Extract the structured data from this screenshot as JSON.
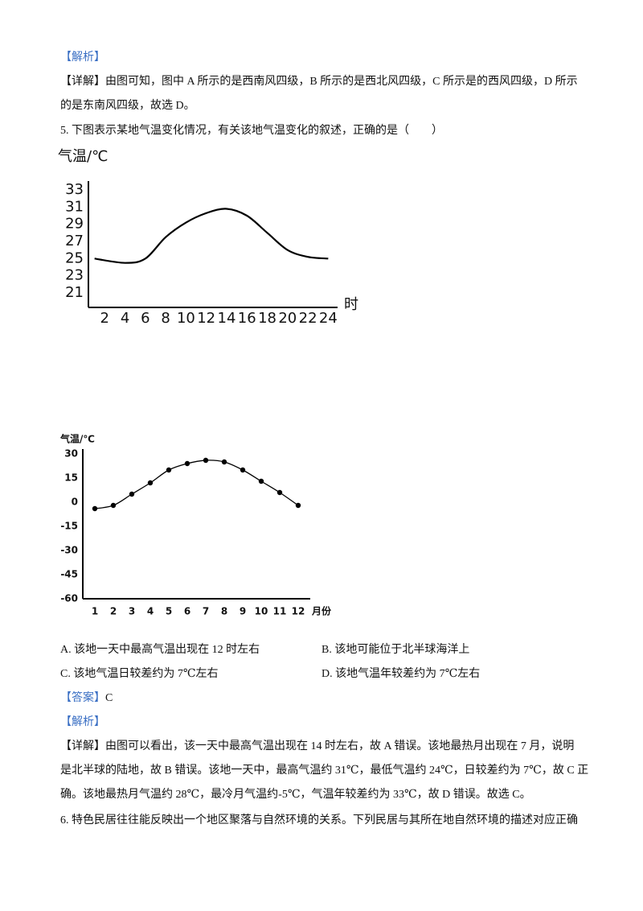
{
  "document": {
    "analysis_tag_1": "【解析】",
    "detail_1": {
      "tag": "【详解】",
      "lines": [
        "由图可知，图中 A 所示的是西南风四级，B 所示的是西北风四级，C 所示是的西风四级，D 所示",
        "的是东南风四级，故选 D。"
      ]
    },
    "question_5": "5. 下图表示某地气温变化情况，有关该地气温变化的叙述，正确的是（　　）",
    "options": [
      "A. 该地一天中最高气温出现在 12 时左右",
      "B. 该地可能位于北半球海洋上",
      "C. 该地气温日较差约为 7℃左右",
      "D. 该地气温年较差约为 7℃左右"
    ],
    "answer": {
      "tag": "【答案】",
      "value": "C"
    },
    "analysis_tag_2": "【解析】",
    "detail_2": {
      "tag": "【详解】",
      "lines": [
        "由图可以看出，该一天中最高气温出现在 14 时左右，故 A 错误。该地最热月出现在 7 月，说明",
        "是北半球的陆地，故 B 错误。该地一天中，最高气温约 31℃，最低气温约 24℃，日较差约为 7℃，故 C 正",
        "确。该地最热月气温约 28℃，最冷月气温约-5℃，气温年较差约为 33℃，故 D 错误。故选 C。"
      ]
    },
    "question_6": "6. 特色民居往往能反映出一个地区聚落与自然环境的关系。下列民居与其所在地自然环境的描述对应正确"
  },
  "chart_data": [
    {
      "type": "line",
      "y_label": "气温/℃",
      "x_label": "时",
      "x": [
        1,
        4,
        6,
        8,
        10,
        12,
        14,
        16,
        18,
        20,
        22,
        24
      ],
      "values": [
        25,
        24.5,
        25,
        27.5,
        29.2,
        30.3,
        30.8,
        30,
        28,
        26,
        25.2,
        25
      ],
      "color": "#000000",
      "xlim": [
        0,
        25
      ],
      "xticks": [
        2,
        4,
        6,
        8,
        10,
        12,
        14,
        16,
        18,
        20,
        22,
        24
      ],
      "ylim": [
        19.5,
        34
      ],
      "yticks": [
        21,
        23,
        25,
        27,
        29,
        31,
        33
      ]
    },
    {
      "type": "line",
      "y_label": "气温/℃",
      "x_label": "月份",
      "categories": [
        "1",
        "2",
        "3",
        "4",
        "5",
        "6",
        "7",
        "8",
        "9",
        "10",
        "11",
        "12"
      ],
      "values": [
        -4,
        -2,
        5,
        12,
        20,
        24,
        26,
        25,
        20,
        13,
        6,
        -2
      ],
      "color": "#000000",
      "markers": true,
      "ylim": [
        -60,
        30
      ],
      "yticks": [
        30,
        15,
        0,
        -15,
        -30,
        -45,
        -60
      ]
    }
  ]
}
